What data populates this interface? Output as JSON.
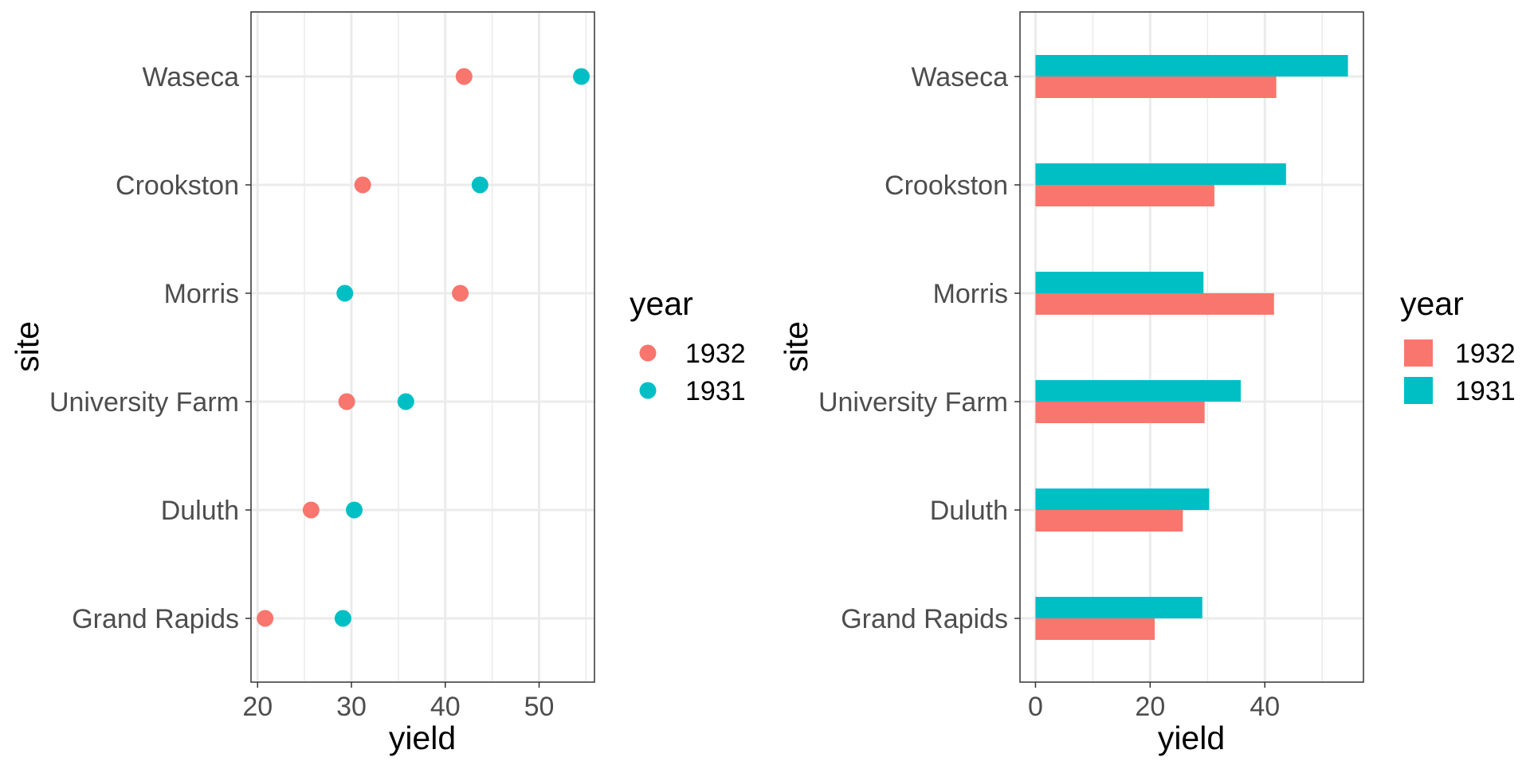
{
  "colors": {
    "1932": "#F8766D",
    "1931": "#00BFC4"
  },
  "chart_data": [
    {
      "type": "scatter",
      "title": "",
      "xlabel": "yield",
      "ylabel": "site",
      "categories": [
        "Waseca",
        "Crookston",
        "Morris",
        "University Farm",
        "Duluth",
        "Grand Rapids"
      ],
      "xlim": [
        19.3,
        55.9
      ],
      "xticks": [
        20,
        30,
        40,
        50
      ],
      "xtick_labels": [
        "20",
        "30",
        "40",
        "50"
      ],
      "grid": true,
      "legend": {
        "title": "year",
        "placement": "right",
        "entries": [
          "1932",
          "1931"
        ]
      },
      "series": [
        {
          "name": "1932",
          "values": [
            42.0,
            31.2,
            41.6,
            29.5,
            25.7,
            20.8
          ]
        },
        {
          "name": "1931",
          "values": [
            54.5,
            43.7,
            29.3,
            35.8,
            30.3,
            29.1
          ]
        }
      ]
    },
    {
      "type": "bar",
      "orientation": "horizontal",
      "title": "",
      "xlabel": "yield",
      "ylabel": "site",
      "categories": [
        "Waseca",
        "Crookston",
        "Morris",
        "University Farm",
        "Duluth",
        "Grand Rapids"
      ],
      "xlim": [
        -2.7,
        57.2
      ],
      "xticks": [
        0,
        20,
        40
      ],
      "xtick_labels": [
        "0",
        "20",
        "40"
      ],
      "grid": true,
      "legend": {
        "title": "year",
        "placement": "right",
        "entries": [
          "1932",
          "1931"
        ]
      },
      "series": [
        {
          "name": "1932",
          "values": [
            42.0,
            31.2,
            41.6,
            29.5,
            25.7,
            20.8
          ]
        },
        {
          "name": "1931",
          "values": [
            54.5,
            43.7,
            29.3,
            35.8,
            30.3,
            29.1
          ]
        }
      ]
    }
  ]
}
